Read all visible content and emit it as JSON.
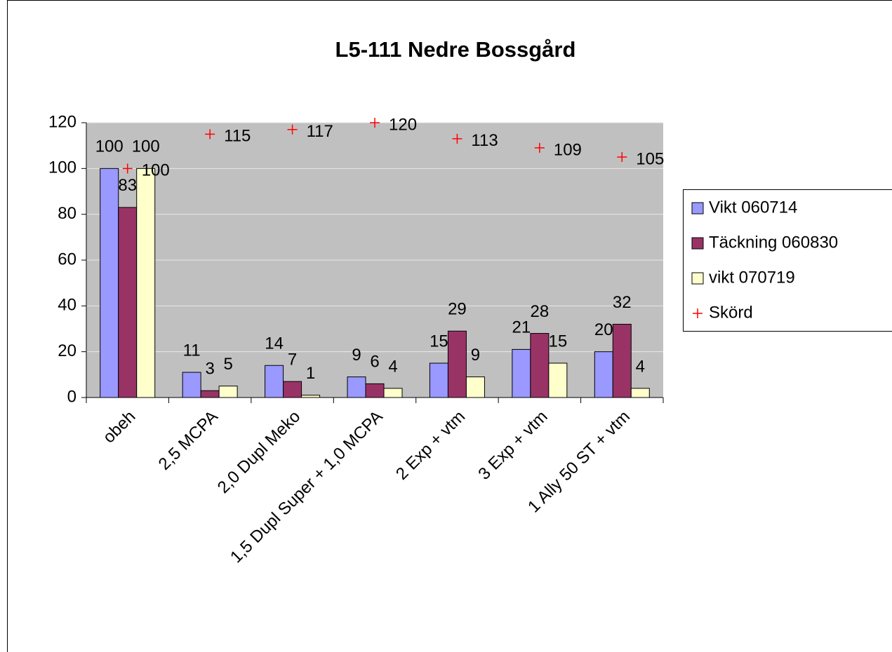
{
  "chart_data": {
    "type": "bar",
    "title": "L5-111 Nedre Bossgård",
    "categories": [
      "obeh",
      "2,5 MCPA",
      "2,0 Dupl Meko",
      "1,5 Dupl Super + 1,0 MCPA",
      "2 Exp + vtm",
      "3 Exp + vtm",
      "1 Ally 50 ST + vtm"
    ],
    "series": [
      {
        "name": "Vikt 060714",
        "color": "#9999ff",
        "type": "bar",
        "values": [
          100,
          11,
          14,
          9,
          15,
          21,
          20
        ]
      },
      {
        "name": "Täckning 060830",
        "color": "#993366",
        "type": "bar",
        "values": [
          83,
          3,
          7,
          6,
          29,
          28,
          32
        ]
      },
      {
        "name": "vikt 070719",
        "color": "#ffffcc",
        "type": "bar",
        "values": [
          100,
          5,
          1,
          4,
          9,
          15,
          4
        ]
      },
      {
        "name": "Skörd",
        "color": "#ff0000",
        "type": "scatter",
        "values": [
          100,
          115,
          117,
          120,
          113,
          109,
          105
        ]
      }
    ],
    "ylim": [
      0,
      120
    ],
    "yticks": [
      0,
      20,
      40,
      60,
      80,
      100,
      120
    ],
    "grid": true,
    "legend": "right",
    "plot_background": "#c0c0c0"
  }
}
